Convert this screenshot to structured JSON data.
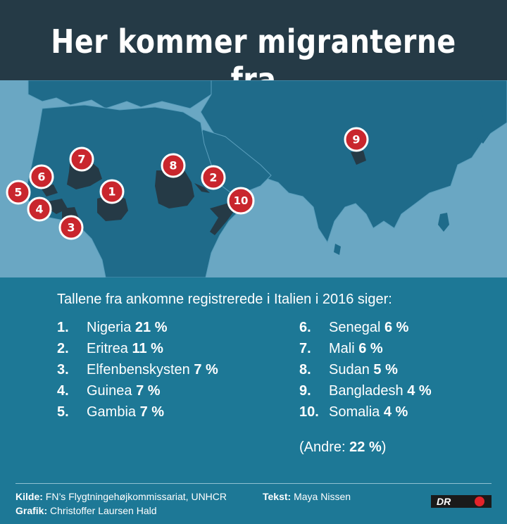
{
  "title": "Her kommer migranterne fra",
  "intro": "Tallene fra ankomne registrerede i Italien i 2016 siger:",
  "list_left": [
    {
      "rank": "1.",
      "country": "Nigeria",
      "percent": "21 %"
    },
    {
      "rank": "2.",
      "country": "Eritrea",
      "percent": "11 %"
    },
    {
      "rank": "3.",
      "country": "Elfenbenskysten",
      "percent": "7 %"
    },
    {
      "rank": "4.",
      "country": "Guinea",
      "percent": "7 %"
    },
    {
      "rank": "5.",
      "country": "Gambia",
      "percent": "7 %"
    }
  ],
  "list_right": [
    {
      "rank": "6.",
      "country": "Senegal",
      "percent": "6 %"
    },
    {
      "rank": "7.",
      "country": "Mali",
      "percent": "6 %"
    },
    {
      "rank": "8.",
      "country": "Sudan",
      "percent": "5 %"
    },
    {
      "rank": "9.",
      "country": "Bangladesh",
      "percent": "4 %"
    },
    {
      "rank": "10.",
      "country": "Somalia",
      "percent": "4 %"
    }
  ],
  "others": {
    "open": "(Andre: ",
    "percent": "22 %",
    "close": ")"
  },
  "credits": {
    "source_label": "Kilde:",
    "source_value": "FN’s Flygtningehøjkommissariat, UNHCR",
    "text_label": "Tekst:",
    "text_value": "Maya Nissen",
    "graphic_label": "Grafik:",
    "graphic_value": "Christoffer Laursen Hald"
  },
  "logo": {
    "text": "DR",
    "icon": "dr-speaker-icon"
  },
  "markers": [
    "1",
    "2",
    "3",
    "4",
    "5",
    "6",
    "7",
    "8",
    "9",
    "10"
  ],
  "colors": {
    "header": "#253a46",
    "sea": "#6aa7c3",
    "land": "#1f6b8a",
    "highlight_country": "#253a46",
    "marker": "#c9262d",
    "background": "#1d7896"
  }
}
